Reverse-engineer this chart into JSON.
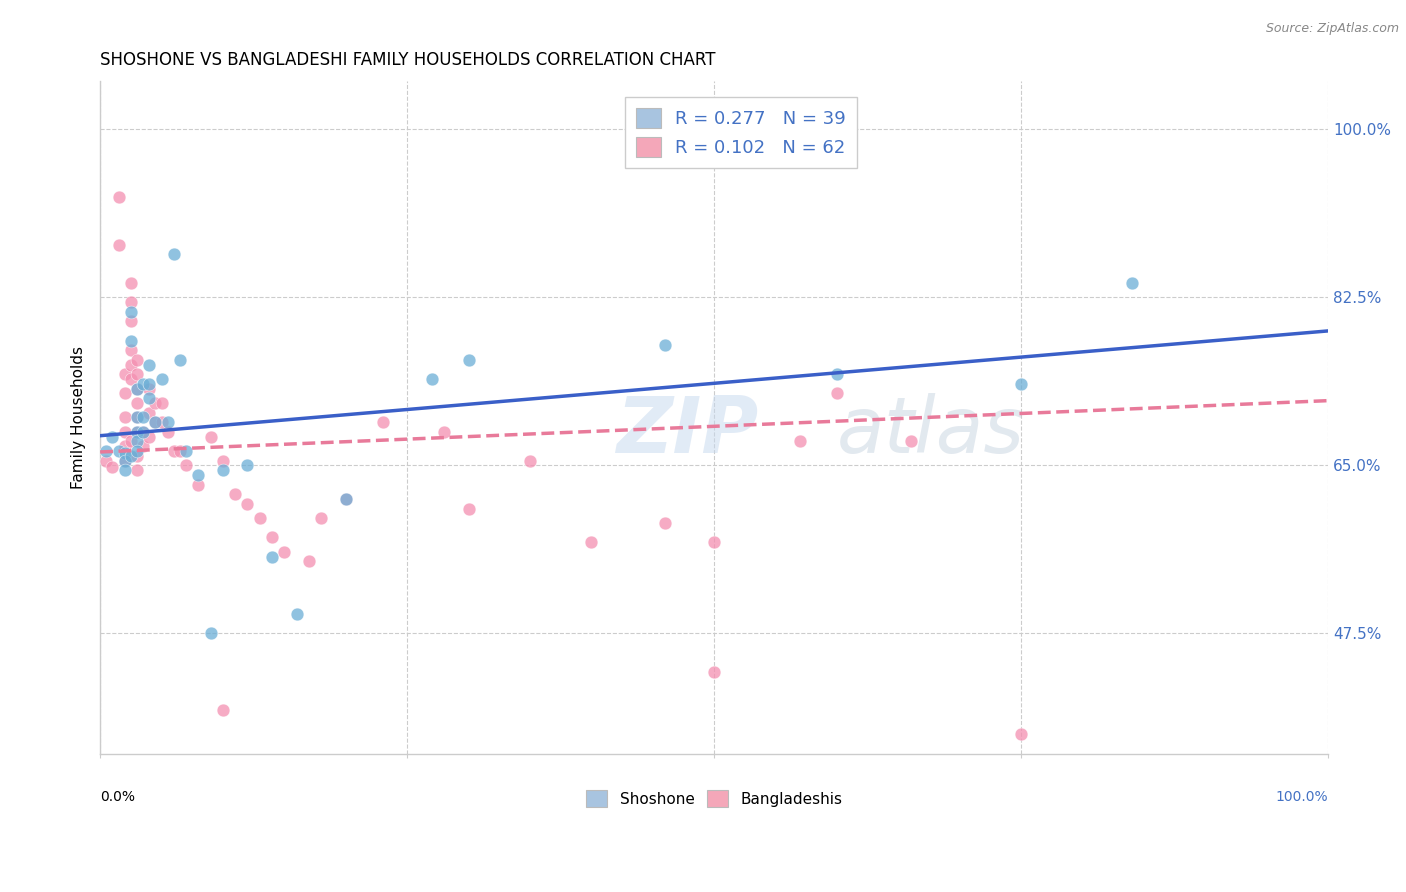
{
  "title": "SHOSHONE VS BANGLADESHI FAMILY HOUSEHOLDS CORRELATION CHART",
  "source": "Source: ZipAtlas.com",
  "ylabel": "Family Households",
  "ytick_labels": [
    "47.5%",
    "65.0%",
    "82.5%",
    "100.0%"
  ],
  "ytick_values": [
    0.475,
    0.65,
    0.825,
    1.0
  ],
  "xlim": [
    0.0,
    1.0
  ],
  "ylim": [
    0.35,
    1.05
  ],
  "legend_entries": [
    {
      "label": "R = 0.277   N = 39",
      "color": "#a8c4e0"
    },
    {
      "label": "R = 0.102   N = 62",
      "color": "#f4a7b9"
    }
  ],
  "legend_label_bottom": [
    "Shoshone",
    "Bangladeshis"
  ],
  "shoshone_color": "#6baed6",
  "bangladeshi_color": "#f48fb1",
  "shoshone_line_color": "#3a5fc8",
  "bangladeshi_line_color": "#e87a9a",
  "watermark_text": "ZIP",
  "watermark_text2": "atlas",
  "shoshone_x": [
    0.005,
    0.01,
    0.015,
    0.02,
    0.02,
    0.02,
    0.025,
    0.025,
    0.025,
    0.03,
    0.03,
    0.03,
    0.03,
    0.03,
    0.035,
    0.035,
    0.035,
    0.04,
    0.04,
    0.04,
    0.045,
    0.05,
    0.055,
    0.06,
    0.065,
    0.07,
    0.08,
    0.09,
    0.1,
    0.12,
    0.14,
    0.16,
    0.2,
    0.27,
    0.3,
    0.46,
    0.6,
    0.75,
    0.84
  ],
  "shoshone_y": [
    0.665,
    0.68,
    0.665,
    0.663,
    0.655,
    0.645,
    0.81,
    0.78,
    0.66,
    0.73,
    0.7,
    0.685,
    0.675,
    0.665,
    0.735,
    0.7,
    0.685,
    0.755,
    0.735,
    0.72,
    0.695,
    0.74,
    0.695,
    0.87,
    0.76,
    0.665,
    0.64,
    0.475,
    0.645,
    0.65,
    0.555,
    0.495,
    0.615,
    0.74,
    0.76,
    0.775,
    0.745,
    0.735,
    0.84
  ],
  "bangladeshi_x": [
    0.005,
    0.01,
    0.015,
    0.015,
    0.02,
    0.02,
    0.02,
    0.02,
    0.02,
    0.02,
    0.025,
    0.025,
    0.025,
    0.025,
    0.025,
    0.025,
    0.03,
    0.03,
    0.03,
    0.03,
    0.03,
    0.03,
    0.035,
    0.035,
    0.04,
    0.04,
    0.04,
    0.045,
    0.045,
    0.05,
    0.05,
    0.055,
    0.06,
    0.065,
    0.07,
    0.08,
    0.09,
    0.1,
    0.11,
    0.12,
    0.13,
    0.14,
    0.15,
    0.17,
    0.2,
    0.23,
    0.28,
    0.3,
    0.35,
    0.4,
    0.46,
    0.5,
    0.57,
    0.6,
    0.66,
    0.75,
    0.025,
    0.03,
    0.03,
    0.18,
    0.5,
    0.1
  ],
  "bangladeshi_y": [
    0.655,
    0.648,
    0.93,
    0.88,
    0.745,
    0.725,
    0.7,
    0.685,
    0.67,
    0.655,
    0.84,
    0.82,
    0.8,
    0.77,
    0.755,
    0.74,
    0.76,
    0.745,
    0.73,
    0.715,
    0.7,
    0.685,
    0.685,
    0.67,
    0.73,
    0.705,
    0.68,
    0.715,
    0.695,
    0.715,
    0.695,
    0.685,
    0.665,
    0.665,
    0.65,
    0.63,
    0.68,
    0.655,
    0.62,
    0.61,
    0.595,
    0.575,
    0.56,
    0.55,
    0.615,
    0.695,
    0.685,
    0.605,
    0.655,
    0.57,
    0.59,
    0.435,
    0.675,
    0.725,
    0.675,
    0.37,
    0.675,
    0.66,
    0.645,
    0.595,
    0.57,
    0.395
  ]
}
